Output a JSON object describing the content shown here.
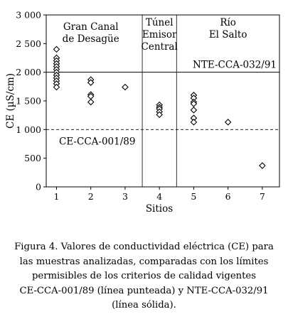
{
  "chart_data": {
    "type": "scatter",
    "xlabel": "Sitios",
    "ylabel": "CE (µS/cm)",
    "xlim": [
      0.7,
      7.5
    ],
    "ylim": [
      0,
      3000
    ],
    "x_ticks": [
      "1",
      "2",
      "3",
      "4",
      "5",
      "6",
      "7"
    ],
    "y_ticks": [
      "0",
      "500",
      "1 000",
      "1 500",
      "2 000",
      "2 500",
      "3 000"
    ],
    "y_tick_values": [
      0,
      500,
      1000,
      1500,
      2000,
      2500,
      3000
    ],
    "marker": "diamond-open",
    "points": [
      {
        "x": 1,
        "y": 2400
      },
      {
        "x": 1,
        "y": 2250
      },
      {
        "x": 1,
        "y": 2200
      },
      {
        "x": 1,
        "y": 2150
      },
      {
        "x": 1,
        "y": 2100
      },
      {
        "x": 1,
        "y": 2050
      },
      {
        "x": 1,
        "y": 2000
      },
      {
        "x": 1,
        "y": 1950
      },
      {
        "x": 1,
        "y": 1900
      },
      {
        "x": 1,
        "y": 1850
      },
      {
        "x": 1,
        "y": 1800
      },
      {
        "x": 1,
        "y": 1740
      },
      {
        "x": 2,
        "y": 1870
      },
      {
        "x": 2,
        "y": 1820
      },
      {
        "x": 2,
        "y": 1610
      },
      {
        "x": 2,
        "y": 1580
      },
      {
        "x": 2,
        "y": 1480
      },
      {
        "x": 3,
        "y": 1740
      },
      {
        "x": 4,
        "y": 1430
      },
      {
        "x": 4,
        "y": 1390
      },
      {
        "x": 4,
        "y": 1360
      },
      {
        "x": 4,
        "y": 1310
      },
      {
        "x": 4,
        "y": 1260
      },
      {
        "x": 5,
        "y": 1600
      },
      {
        "x": 5,
        "y": 1550
      },
      {
        "x": 5,
        "y": 1480
      },
      {
        "x": 5,
        "y": 1450
      },
      {
        "x": 5,
        "y": 1340
      },
      {
        "x": 5,
        "y": 1200
      },
      {
        "x": 5,
        "y": 1130
      },
      {
        "x": 6,
        "y": 1130
      },
      {
        "x": 7,
        "y": 370
      }
    ],
    "reference_lines": [
      {
        "label": "NTE-CCA-032/91",
        "y": 2000,
        "style": "solid"
      },
      {
        "label": "CE-CCA-001/89",
        "y": 1000,
        "style": "dashed"
      }
    ],
    "dividers_x": [
      3.5,
      4.5
    ],
    "groups": [
      {
        "lines": [
          "Gran Canal",
          "de Desagüe"
        ],
        "x_center": 2
      },
      {
        "lines": [
          "Túnel",
          "Emisor",
          "Central"
        ],
        "x_center": 4
      },
      {
        "lines": [
          "Río",
          "El Salto"
        ],
        "x_center": 6
      }
    ]
  },
  "caption": [
    "Figura 4. Valores de conductividad eléctrica (CE) para",
    "las muestras analizadas, comparadas con los límites",
    "permisibles de los criterios de calidad vigentes",
    "CE-CCA-001/89 (línea punteada) y NTE-CCA-032/91",
    "(línea sólida)."
  ]
}
